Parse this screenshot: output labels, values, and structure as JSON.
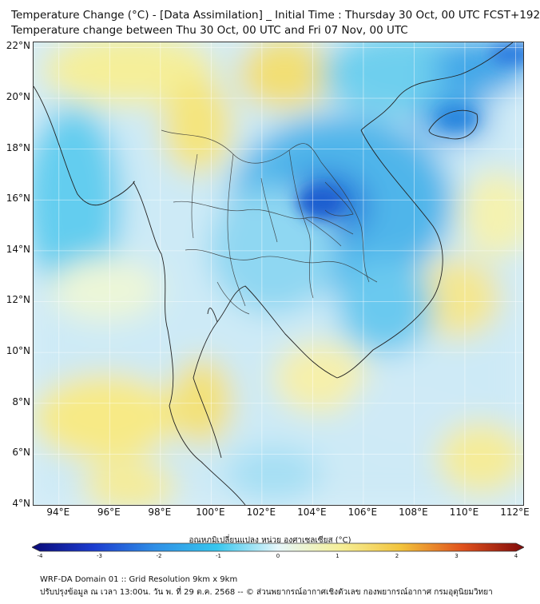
{
  "header": {
    "title_line1": "Temperature Change (°C) - [Data Assimilation] _ Initial Time : Thursday 30 Oct, 00 UTC FCST+192",
    "title_line2": "Temperature change between Thu 30 Oct, 00 UTC and Fri 07 Nov, 00 UTC"
  },
  "map": {
    "lat_labels": [
      "22°N",
      "20°N",
      "18°N",
      "16°N",
      "14°N",
      "12°N",
      "10°N",
      "8°N",
      "6°N",
      "4°N"
    ],
    "lon_labels": [
      "94°E",
      "96°E",
      "98°E",
      "100°E",
      "102°E",
      "104°E",
      "106°E",
      "108°E",
      "110°E",
      "112°E"
    ],
    "lat_range": [
      4,
      22.2
    ],
    "lon_range": [
      93,
      112.3
    ]
  },
  "colorbar": {
    "label": "อุณหภูมิเปลี่ยนแปลง หน่วย องศาเซลเซียส (°C)",
    "ticks": [
      "-4",
      "-3",
      "-2",
      "-1",
      "0",
      "1",
      "2",
      "3",
      "4"
    ],
    "range": [
      -4,
      4
    ],
    "colors": [
      "#0a0a78",
      "#1c3ccf",
      "#2f8fe6",
      "#36c6ee",
      "#e6f7fb",
      "#f6f09a",
      "#f2c33b",
      "#e0511c",
      "#800a0a"
    ]
  },
  "footer": {
    "line1": "WRF-DA Domain 01 :: Grid Resolution 9km x 9km",
    "line2": "ปรับปรุงข้อมูล ณ เวลา 13:00น. วัน พ. ที่ 29 ต.ค. 2568 -- © ส่วนพยากรณ์อากาศเชิงตัวเลข กองพยากรณ์อากาศ กรมอุตุนิยมวิทยา"
  }
}
